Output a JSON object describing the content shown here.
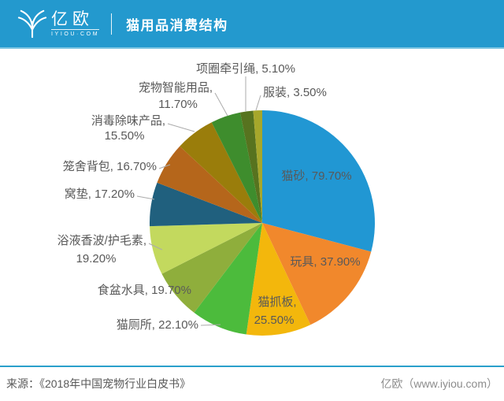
{
  "header": {
    "brand_name": "亿欧",
    "brand_domain": "IYIOU·COM",
    "title": "猫用品消费结构"
  },
  "colors": {
    "header_bg": "#2399CE",
    "header_border": "#7CC5E2",
    "footer_divider": "#2AA0CB",
    "label_text": "#595959",
    "leader_line": "#ABABAB",
    "source_text": "#595959",
    "credit_text": "#8C8C8C"
  },
  "chart_data": {
    "type": "pie",
    "title": "猫用品消费结构",
    "unit": "%",
    "direction": "clockwise",
    "start_angle_deg": 0,
    "legend": "none",
    "label_format": "{name}, {value}%",
    "slices": [
      {
        "name": "猫砂",
        "value": 79.7,
        "color": "#2197D3"
      },
      {
        "name": "玩具",
        "value": 37.9,
        "color": "#F1882C"
      },
      {
        "name": "猫抓板",
        "value": 25.5,
        "color": "#F3B70C"
      },
      {
        "name": "猫厕所",
        "value": 22.1,
        "color": "#4CBB3C"
      },
      {
        "name": "食盆水具",
        "value": 19.7,
        "color": "#8FAE3C"
      },
      {
        "name": "浴液香波/护毛素",
        "value": 19.2,
        "color": "#C3D95E"
      },
      {
        "name": "窝垫",
        "value": 17.2,
        "color": "#20607E"
      },
      {
        "name": "笼舍背包",
        "value": 16.7,
        "color": "#B5661B"
      },
      {
        "name": "消毒除味产品",
        "value": 15.5,
        "color": "#9A7D0B"
      },
      {
        "name": "宠物智能用品",
        "value": 11.7,
        "color": "#3E8D2D"
      },
      {
        "name": "项圈牵引绳",
        "value": 5.1,
        "color": "#57731F"
      },
      {
        "name": "服装",
        "value": 3.5,
        "color": "#A6A72B"
      }
    ]
  },
  "footer": {
    "source": "来源：《2018年中国宠物行业白皮书》",
    "credit": "亿欧（www.iyiou.com）"
  }
}
